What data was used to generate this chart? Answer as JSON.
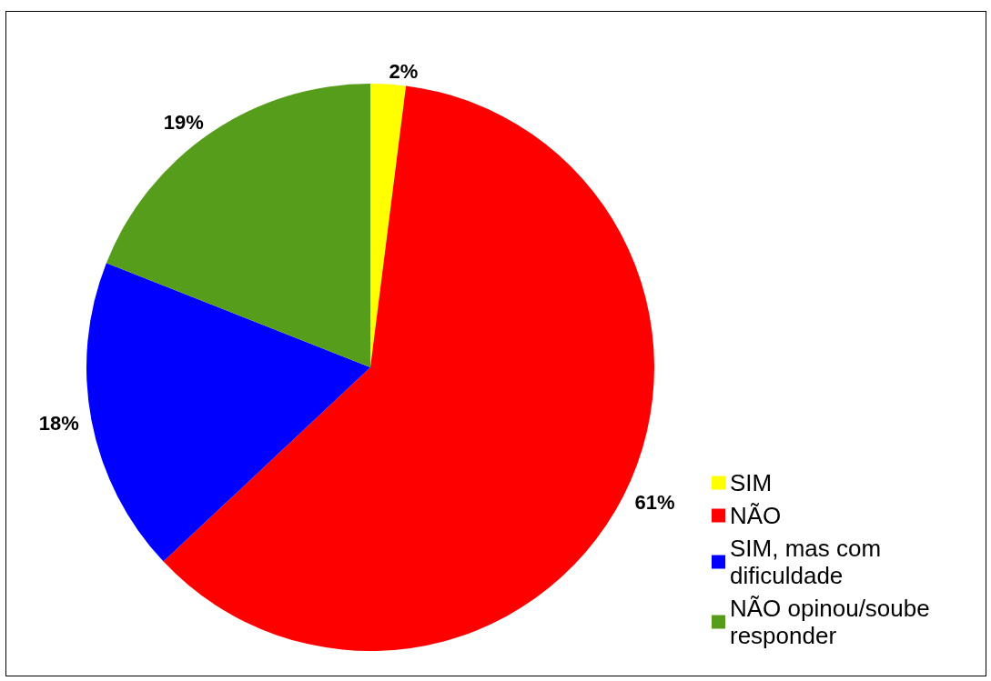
{
  "chart_data": {
    "type": "pie",
    "categories": [
      "SIM",
      "NÃO",
      "SIM, mas com dificuldade",
      "NÃO opinou/soube responder"
    ],
    "values": [
      2,
      61,
      18,
      19
    ],
    "colors": [
      "#ffff00",
      "#ff0000",
      "#0000ff",
      "#579d1c"
    ],
    "value_labels": [
      "2%",
      "61%",
      "18%",
      "19%"
    ],
    "legend": "right"
  }
}
